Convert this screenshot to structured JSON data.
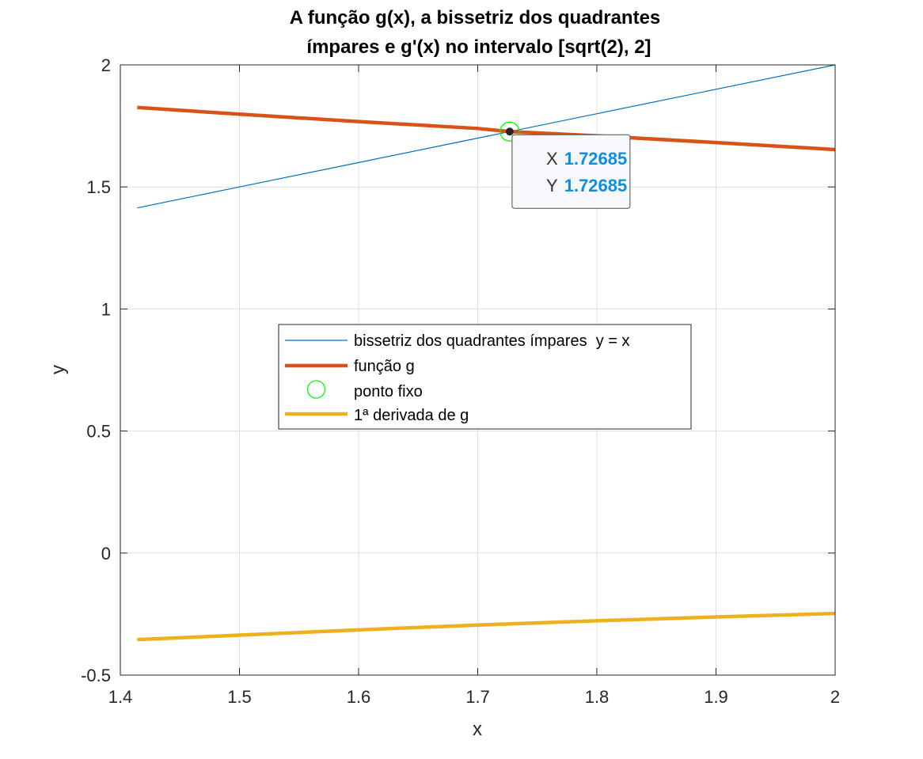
{
  "chart_data": {
    "type": "line",
    "title_line1": "A função g(x), a bissetriz dos quadrantes",
    "title_line2": "ímpares e g'(x) no intervalo [sqrt(2), 2]",
    "xlabel": "x",
    "ylabel": "y",
    "xlim": [
      1.4,
      2
    ],
    "ylim": [
      -0.5,
      2
    ],
    "grid": true,
    "x_ticks": [
      1.4,
      1.5,
      1.6,
      1.7,
      1.8,
      1.9,
      2
    ],
    "x_tick_labels": [
      "1.4",
      "1.5",
      "1.6",
      "1.7",
      "1.8",
      "1.9",
      "2"
    ],
    "y_ticks": [
      -0.5,
      0,
      0.5,
      1,
      1.5,
      2
    ],
    "y_tick_labels": [
      "-0.5",
      "0",
      "0.5",
      "1",
      "1.5",
      "2"
    ],
    "legend_position": "center",
    "series": [
      {
        "name": "bissetriz dos quadrantes ímpares  y = x",
        "color": "#0072bd",
        "x": [
          1.41421,
          1.5,
          1.6,
          1.7,
          1.8,
          1.9,
          2
        ],
        "y": [
          1.41421,
          1.5,
          1.6,
          1.7,
          1.8,
          1.9,
          2
        ]
      },
      {
        "name": "função g",
        "color": "#d95319",
        "x": [
          1.41421,
          1.5,
          1.6,
          1.7,
          1.72685,
          1.8,
          1.9,
          2
        ],
        "y": [
          1.8257,
          1.7981,
          1.7677,
          1.7396,
          1.72685,
          1.7092,
          1.6818,
          1.6532
        ]
      },
      {
        "name": "ponto fixo",
        "color": "#00ff00",
        "marker": "circle",
        "x": [
          1.72685
        ],
        "y": [
          1.72685
        ]
      },
      {
        "name": "1ª derivada de g",
        "color": "#edb120",
        "x": [
          1.41421,
          1.5,
          1.6,
          1.7,
          1.8,
          1.9,
          2
        ],
        "y": [
          -0.3546,
          -0.3364,
          -0.3146,
          -0.2948,
          -0.2774,
          -0.2616,
          -0.2475
        ]
      }
    ],
    "datatip": {
      "x_key": "X",
      "y_key": "Y",
      "x_value": "1.72685",
      "y_value": "1.72685",
      "x": 1.72685,
      "y": 1.72685
    }
  }
}
